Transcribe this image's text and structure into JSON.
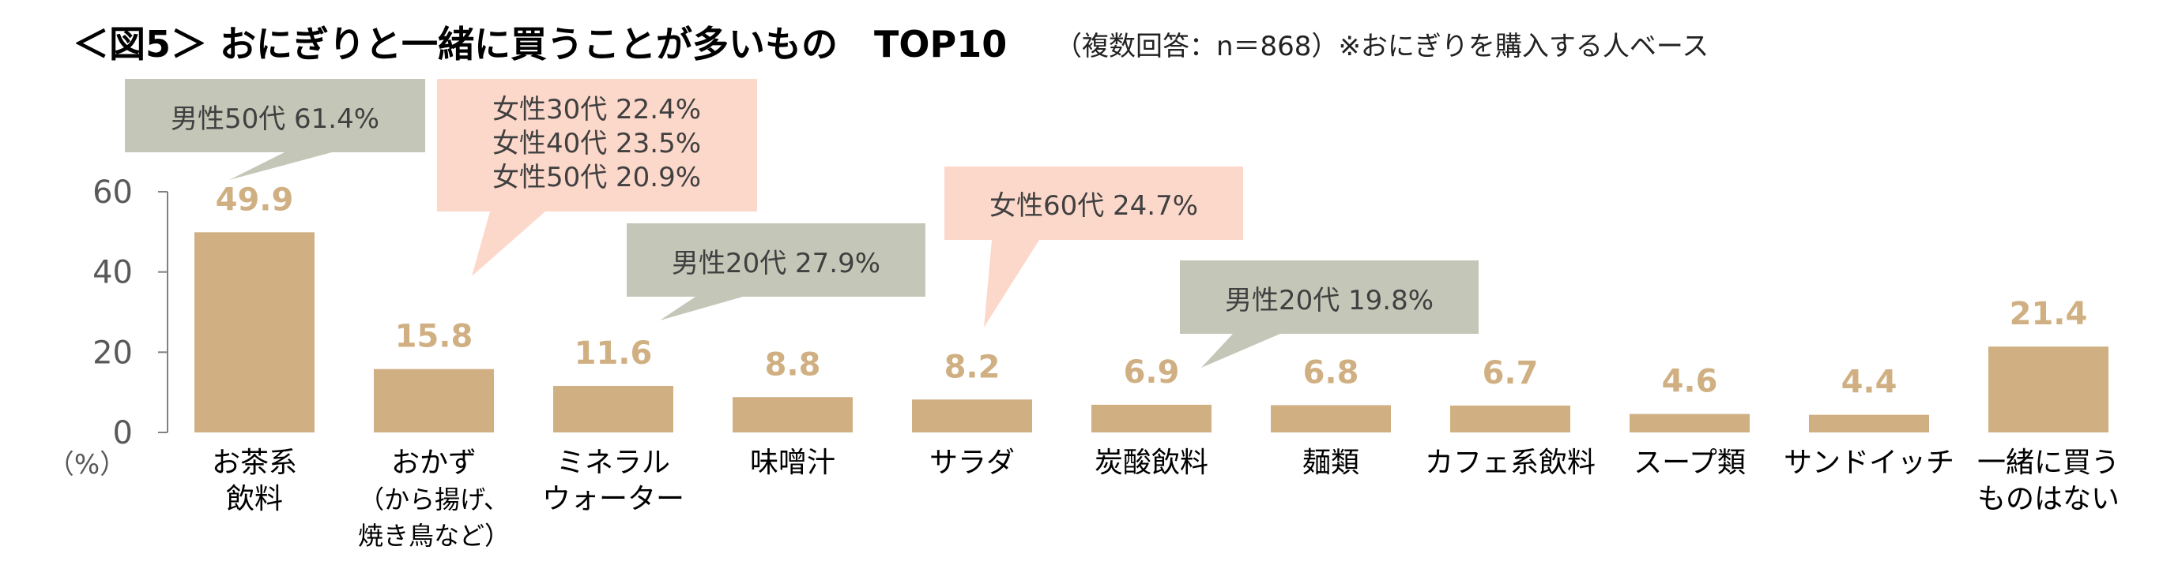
{
  "title": "＜図5＞ おにぎりと一緒に買うことが多いもの　TOP10",
  "subtitle": "（複数回答：n＝868）※おにぎりを購入する人ベース",
  "colors": {
    "bar": "#d0b083",
    "value_label": "#d0b083",
    "callout_male": "#c4c7b8",
    "callout_female": "#fcd8cb",
    "axis": "#808080"
  },
  "chart_data": {
    "type": "bar",
    "unit_label": "（%）",
    "ylim": [
      0,
      60
    ],
    "yticks": [
      "0",
      "20",
      "40",
      "60"
    ],
    "categories": [
      [
        "お茶系",
        "飲料"
      ],
      [
        "おかず",
        "（から揚げ、",
        "焼き鳥など）"
      ],
      [
        "ミネラル",
        "ウォーター"
      ],
      [
        "味噌汁"
      ],
      [
        "サラダ"
      ],
      [
        "炭酸飲料"
      ],
      [
        "麺類"
      ],
      [
        "カフェ系飲料"
      ],
      [
        "スープ類"
      ],
      [
        "サンドイッチ"
      ],
      [
        "一緒に買う",
        "ものはない"
      ]
    ],
    "values": [
      49.9,
      15.8,
      11.6,
      8.8,
      8.2,
      6.9,
      6.8,
      6.7,
      4.6,
      4.4,
      21.4
    ],
    "value_labels": [
      "49.9",
      "15.8",
      "11.6",
      "8.8",
      "8.2",
      "6.9",
      "6.8",
      "6.7",
      "4.6",
      "4.4",
      "21.4"
    ],
    "grid": false,
    "annotations": [
      {
        "category_index": 0,
        "style": "male",
        "lines": [
          "男性50代  61.4%"
        ]
      },
      {
        "category_index": 1,
        "style": "female",
        "lines": [
          "女性30代  22.4%",
          "女性40代  23.5%",
          "女性50代  20.9%"
        ]
      },
      {
        "category_index": 2,
        "style": "male",
        "lines": [
          "男性20代  27.9%"
        ]
      },
      {
        "category_index": 4,
        "style": "female",
        "lines": [
          "女性60代  24.7%"
        ]
      },
      {
        "category_index": 5,
        "style": "male",
        "lines": [
          "男性20代  19.8%"
        ]
      }
    ]
  }
}
